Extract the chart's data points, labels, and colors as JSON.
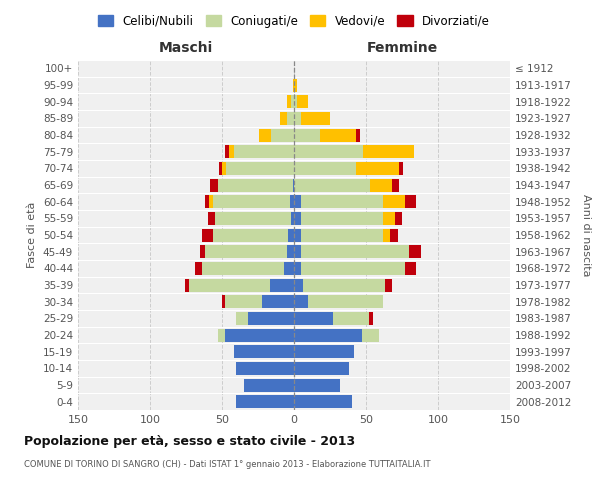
{
  "age_groups": [
    "0-4",
    "5-9",
    "10-14",
    "15-19",
    "20-24",
    "25-29",
    "30-34",
    "35-39",
    "40-44",
    "45-49",
    "50-54",
    "55-59",
    "60-64",
    "65-69",
    "70-74",
    "75-79",
    "80-84",
    "85-89",
    "90-94",
    "95-99",
    "100+"
  ],
  "birth_years": [
    "2008-2012",
    "2003-2007",
    "1998-2002",
    "1993-1997",
    "1988-1992",
    "1983-1987",
    "1978-1982",
    "1973-1977",
    "1968-1972",
    "1963-1967",
    "1958-1962",
    "1953-1957",
    "1948-1952",
    "1943-1947",
    "1938-1942",
    "1933-1937",
    "1928-1932",
    "1923-1927",
    "1918-1922",
    "1913-1917",
    "≤ 1912"
  ],
  "maschi": {
    "celibi": [
      40,
      35,
      40,
      42,
      48,
      32,
      22,
      17,
      7,
      5,
      4,
      2,
      3,
      1,
      0,
      0,
      0,
      0,
      0,
      0,
      0
    ],
    "coniugati": [
      0,
      0,
      0,
      0,
      5,
      8,
      26,
      56,
      57,
      57,
      52,
      53,
      53,
      52,
      47,
      42,
      16,
      5,
      2,
      0,
      0
    ],
    "vedovi": [
      0,
      0,
      0,
      0,
      0,
      0,
      0,
      0,
      0,
      0,
      0,
      0,
      3,
      0,
      3,
      3,
      8,
      5,
      3,
      1,
      0
    ],
    "divorziati": [
      0,
      0,
      0,
      0,
      0,
      0,
      2,
      3,
      5,
      3,
      8,
      5,
      3,
      5,
      2,
      3,
      0,
      0,
      0,
      0,
      0
    ]
  },
  "femmine": {
    "nubili": [
      40,
      32,
      38,
      42,
      47,
      27,
      10,
      6,
      5,
      5,
      5,
      5,
      5,
      0,
      0,
      0,
      0,
      0,
      0,
      0,
      0
    ],
    "coniugate": [
      0,
      0,
      0,
      0,
      12,
      25,
      52,
      57,
      72,
      75,
      57,
      57,
      57,
      53,
      43,
      48,
      18,
      5,
      2,
      0,
      0
    ],
    "vedove": [
      0,
      0,
      0,
      0,
      0,
      0,
      0,
      0,
      0,
      0,
      5,
      8,
      15,
      15,
      30,
      35,
      25,
      20,
      8,
      2,
      0
    ],
    "divorziate": [
      0,
      0,
      0,
      0,
      0,
      3,
      0,
      5,
      8,
      8,
      5,
      5,
      8,
      5,
      3,
      0,
      3,
      0,
      0,
      0,
      0
    ]
  },
  "colors": {
    "celibi_nubili": "#4472c4",
    "coniugati": "#c5d9a0",
    "vedovi": "#ffc000",
    "divorziati": "#c0000b"
  },
  "title": "Popolazione per età, sesso e stato civile - 2013",
  "subtitle": "COMUNE DI TORINO DI SANGRO (CH) - Dati ISTAT 1° gennaio 2013 - Elaborazione TUTTAITALIA.IT",
  "xlabel_left": "Maschi",
  "xlabel_right": "Femmine",
  "ylabel_left": "Fasce di età",
  "ylabel_right": "Anni di nascita",
  "xlim": 150,
  "bg_color": "#f0f0f0",
  "grid_color": "#cccccc",
  "legend_labels": [
    "Celibi/Nubili",
    "Coniugati/e",
    "Vedovi/e",
    "Divorziati/e"
  ]
}
